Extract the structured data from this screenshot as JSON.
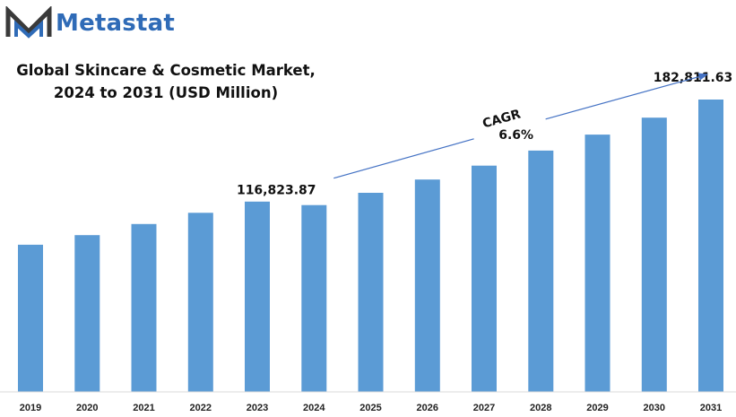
{
  "brand": {
    "name": "Metastat",
    "color": "#2f6bb7",
    "mark_color": "#3a3a3a"
  },
  "chart_data": {
    "type": "bar",
    "title_lines": [
      "Global Skincare & Cosmetic Market,",
      "2024 to 2031 (USD Million)"
    ],
    "xlabel": "",
    "ylabel": "",
    "categories": [
      "2019",
      "2020",
      "2021",
      "2022",
      "2023",
      "2024",
      "2025",
      "2026",
      "2027",
      "2028",
      "2029",
      "2030",
      "2031"
    ],
    "values": [
      92000,
      98000,
      105000,
      112000,
      119000,
      116823.87,
      124500,
      132800,
      141500,
      150900,
      160900,
      171500,
      182811.63
    ],
    "ylim": [
      0,
      185000
    ],
    "grid": false,
    "legend": "none",
    "bar_color": "#5b9bd5",
    "data_labels": [
      {
        "category": "2024",
        "text": "116,823.87"
      },
      {
        "category": "2031",
        "text": "182,811.63"
      }
    ],
    "annotation": {
      "from": "2024",
      "to": "2031",
      "label": "CAGR",
      "value": "6.6%",
      "color": "#4472c4"
    }
  }
}
